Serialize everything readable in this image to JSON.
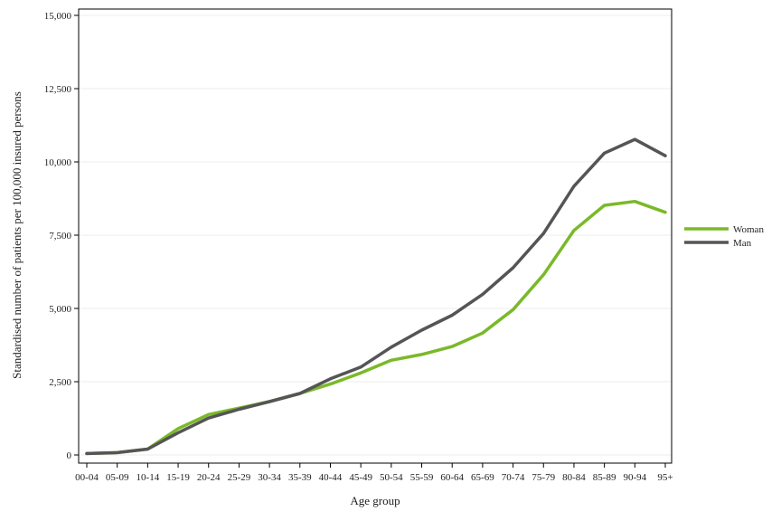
{
  "chart_data": {
    "type": "line",
    "title": "",
    "xlabel": "Age group",
    "ylabel": "Standardised number of patients per 100,000 insured persons",
    "ylim": [
      0,
      15000
    ],
    "yticks": [
      0,
      2500,
      5000,
      7500,
      10000,
      12500,
      15000
    ],
    "ytick_labels": [
      "0",
      "2,500",
      "5,000",
      "7,500",
      "10,000",
      "12,500",
      "15,000"
    ],
    "grid": true,
    "legend_position": "right",
    "categories": [
      "00-04",
      "05-09",
      "10-14",
      "15-19",
      "20-24",
      "25-29",
      "30-34",
      "35-39",
      "40-44",
      "45-49",
      "50-54",
      "55-59",
      "60-64",
      "65-69",
      "70-74",
      "75-79",
      "80-84",
      "85-89",
      "90-94",
      "95+"
    ],
    "series": [
      {
        "name": "Woman",
        "color": "#7ab929",
        "values": [
          50,
          80,
          200,
          900,
          1380,
          1600,
          1820,
          2100,
          2420,
          2800,
          3230,
          3430,
          3700,
          4160,
          4960,
          6150,
          7660,
          8520,
          8650,
          8280
        ]
      },
      {
        "name": "Man",
        "color": "#555555",
        "values": [
          50,
          80,
          200,
          760,
          1260,
          1560,
          1820,
          2100,
          2600,
          3000,
          3680,
          4260,
          4770,
          5480,
          6390,
          7560,
          9170,
          10300,
          10770,
          10210
        ]
      }
    ]
  }
}
